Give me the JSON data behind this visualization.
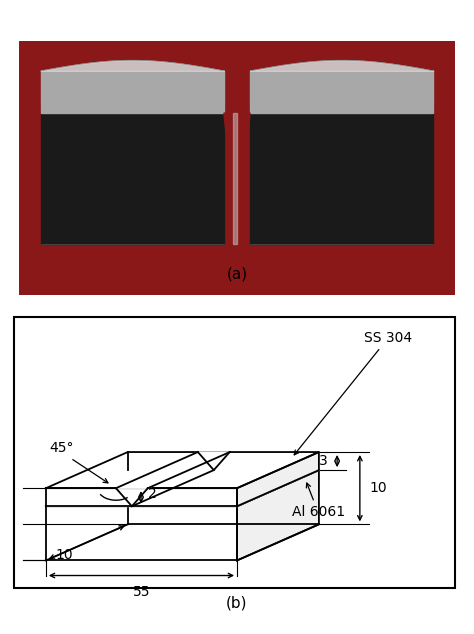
{
  "title_a": "(a)",
  "title_b": "(b)",
  "label_ss304": "SS 304",
  "label_al6061": "Al 6061",
  "dim_55": "55",
  "dim_10_left": "10",
  "dim_10_right": "10",
  "dim_3": "3",
  "dim_2": "2",
  "angle_label": "45°",
  "line_color": "#000000",
  "font_size": 10,
  "font_size_caption": 11,
  "photo_red_bg": "#8B1818",
  "photo_specimen_dark": "#1a1a1a",
  "photo_specimen_silver": "#a8a8a8",
  "photo_specimen_light": "#d0d0d0",
  "photo_notch_line": "#888888"
}
